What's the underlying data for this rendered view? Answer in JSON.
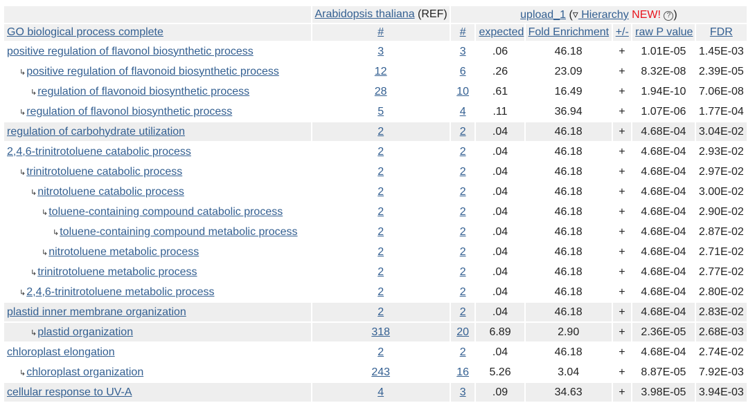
{
  "header": {
    "ref_species": "Arabidopsis thaliana",
    "ref_suffix": "(REF)",
    "upload_name": "upload_1",
    "hier_prefix": "(▿",
    "hier_link": " Hierarchy",
    "new_badge": "NEW!",
    "help_glyph": "?",
    "hier_suffix": ")",
    "columns": {
      "process": "GO biological process complete",
      "ref_count": "#",
      "count": "#",
      "expected": "expected",
      "fold": "Fold Enrichment",
      "sign": "+/-",
      "rawp": "raw P value",
      "fdr": "FDR"
    }
  },
  "rows": [
    {
      "name": "positive regulation of flavonol biosynthetic process",
      "level": 0,
      "group": 1,
      "ref": "3",
      "count": "3",
      "expected": ".06",
      "fold": "46.18",
      "sign": "+",
      "rawp": "1.01E-05",
      "fdr": "1.45E-03"
    },
    {
      "name": "positive regulation of flavonoid biosynthetic process",
      "level": 1,
      "group": 1,
      "ref": "12",
      "count": "6",
      "expected": ".26",
      "fold": "23.09",
      "sign": "+",
      "rawp": "8.32E-08",
      "fdr": "2.39E-05"
    },
    {
      "name": "regulation of flavonoid biosynthetic process",
      "level": 2,
      "group": 1,
      "ref": "28",
      "count": "10",
      "expected": ".61",
      "fold": "16.49",
      "sign": "+",
      "rawp": "1.94E-10",
      "fdr": "7.06E-08"
    },
    {
      "name": "regulation of flavonol biosynthetic process",
      "level": 1,
      "group": 1,
      "ref": "5",
      "count": "4",
      "expected": ".11",
      "fold": "36.94",
      "sign": "+",
      "rawp": "1.07E-06",
      "fdr": "1.77E-04"
    },
    {
      "name": "regulation of carbohydrate utilization",
      "level": 0,
      "group": 2,
      "ref": "2",
      "count": "2",
      "expected": ".04",
      "fold": "46.18",
      "sign": "+",
      "rawp": "4.68E-04",
      "fdr": "3.04E-02"
    },
    {
      "name": "2,4,6-trinitrotoluene catabolic process",
      "level": 0,
      "group": 1,
      "ref": "2",
      "count": "2",
      "expected": ".04",
      "fold": "46.18",
      "sign": "+",
      "rawp": "4.68E-04",
      "fdr": "2.93E-02"
    },
    {
      "name": "trinitrotoluene catabolic process",
      "level": 1,
      "group": 1,
      "ref": "2",
      "count": "2",
      "expected": ".04",
      "fold": "46.18",
      "sign": "+",
      "rawp": "4.68E-04",
      "fdr": "2.97E-02"
    },
    {
      "name": "nitrotoluene catabolic process",
      "level": 2,
      "group": 1,
      "ref": "2",
      "count": "2",
      "expected": ".04",
      "fold": "46.18",
      "sign": "+",
      "rawp": "4.68E-04",
      "fdr": "3.00E-02"
    },
    {
      "name": "toluene-containing compound catabolic process",
      "level": 3,
      "group": 1,
      "ref": "2",
      "count": "2",
      "expected": ".04",
      "fold": "46.18",
      "sign": "+",
      "rawp": "4.68E-04",
      "fdr": "2.90E-02"
    },
    {
      "name": "toluene-containing compound metabolic process",
      "level": 4,
      "group": 1,
      "ref": "2",
      "count": "2",
      "expected": ".04",
      "fold": "46.18",
      "sign": "+",
      "rawp": "4.68E-04",
      "fdr": "2.87E-02"
    },
    {
      "name": "nitrotoluene metabolic process",
      "level": 3,
      "group": 1,
      "ref": "2",
      "count": "2",
      "expected": ".04",
      "fold": "46.18",
      "sign": "+",
      "rawp": "4.68E-04",
      "fdr": "2.71E-02"
    },
    {
      "name": "trinitrotoluene metabolic process",
      "level": 2,
      "group": 1,
      "ref": "2",
      "count": "2",
      "expected": ".04",
      "fold": "46.18",
      "sign": "+",
      "rawp": "4.68E-04",
      "fdr": "2.77E-02"
    },
    {
      "name": "2,4,6-trinitrotoluene metabolic process",
      "level": 1,
      "group": 1,
      "ref": "2",
      "count": "2",
      "expected": ".04",
      "fold": "46.18",
      "sign": "+",
      "rawp": "4.68E-04",
      "fdr": "2.80E-02"
    },
    {
      "name": "plastid inner membrane organization",
      "level": 0,
      "group": 2,
      "ref": "2",
      "count": "2",
      "expected": ".04",
      "fold": "46.18",
      "sign": "+",
      "rawp": "4.68E-04",
      "fdr": "2.83E-02"
    },
    {
      "name": "plastid organization",
      "level": 2,
      "group": 2,
      "ref": "318",
      "count": "20",
      "expected": "6.89",
      "fold": "2.90",
      "sign": "+",
      "rawp": "2.36E-05",
      "fdr": "2.68E-03"
    },
    {
      "name": "chloroplast elongation",
      "level": 0,
      "group": 1,
      "ref": "2",
      "count": "2",
      "expected": ".04",
      "fold": "46.18",
      "sign": "+",
      "rawp": "4.68E-04",
      "fdr": "2.74E-02"
    },
    {
      "name": "chloroplast organization",
      "level": 1,
      "group": 1,
      "ref": "243",
      "count": "16",
      "expected": "5.26",
      "fold": "3.04",
      "sign": "+",
      "rawp": "8.87E-05",
      "fdr": "7.92E-03"
    },
    {
      "name": "cellular response to UV-A",
      "level": 0,
      "group": 2,
      "ref": "4",
      "count": "3",
      "expected": ".09",
      "fold": "34.63",
      "sign": "+",
      "rawp": "3.98E-05",
      "fdr": "3.94E-03"
    }
  ],
  "icons": {
    "hierarchy_child": "child-arrow-icon",
    "help": "help-icon"
  },
  "colors": {
    "link": "#335f91",
    "new_badge": "#e8141c",
    "header_bg": "#f0f0f0",
    "group_bg": "#eeeeee"
  }
}
